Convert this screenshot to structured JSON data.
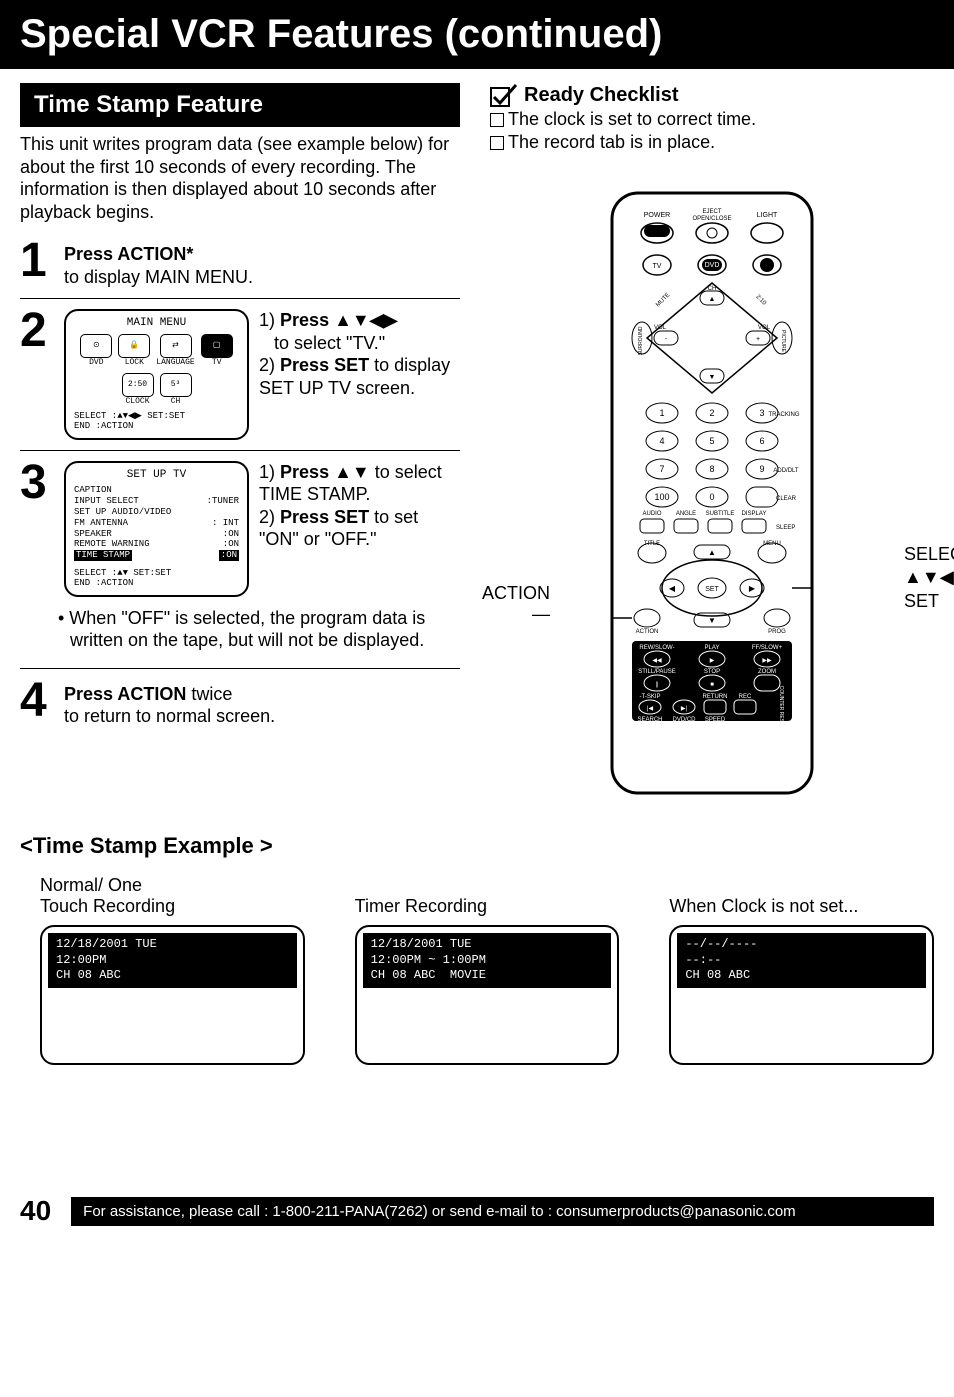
{
  "page": {
    "title": "Special VCR Features (continued)",
    "section_title": "Time Stamp Feature",
    "intro": "This unit writes program data (see example below) for about the first 10 seconds of every recording. The information is then displayed about 10 seconds after playback begins.",
    "page_number": "40",
    "footer": "For assistance, please call : 1-800-211-PANA(7262) or send e-mail to : consumerproducts@panasonic.com"
  },
  "checklist": {
    "title": "Ready Checklist",
    "items": [
      "The clock is set to correct time.",
      "The record tab is in place."
    ]
  },
  "steps": {
    "s1": {
      "num": "1",
      "bold": "Press ACTION*",
      "rest": "to display MAIN MENU."
    },
    "s2": {
      "num": "2",
      "screen_title": "MAIN MENU",
      "icons": [
        "DVD",
        "LOCK",
        "LANGUAGE",
        "TV",
        "CLOCK",
        "CH"
      ],
      "footer1": "SELECT :▲▼◀▶   SET:SET",
      "footer2": "END    :ACTION",
      "line1a": "1)",
      "line1b": "Press ▲▼◀▶",
      "line1c": "to select \"TV.\"",
      "line2a": "2)",
      "line2b": "Press SET",
      "line2c": " to display SET UP TV screen."
    },
    "s3": {
      "num": "3",
      "screen_title": "SET UP TV",
      "rows": [
        [
          "CAPTION",
          ""
        ],
        [
          "INPUT SELECT",
          ":TUNER"
        ],
        [
          "SET UP AUDIO/VIDEO",
          ""
        ],
        [
          "FM ANTENNA",
          ": INT"
        ],
        [
          "SPEAKER",
          ":ON"
        ],
        [
          "REMOTE WARNING",
          ":ON"
        ]
      ],
      "highlight_row": "TIME STAMP",
      "highlight_val": ":ON",
      "footer1": "SELECT :▲▼        SET:SET",
      "footer2": "END    :ACTION",
      "line1a": "1)",
      "line1b": "Press ▲▼",
      "line1c": " to select TIME STAMP.",
      "line2a": "2)",
      "line2b": "Press SET",
      "line2c": " to set \"ON\" or \"OFF.\""
    },
    "note": "• When \"OFF\" is selected, the program data is written on the tape, but will not be displayed.",
    "s4": {
      "num": "4",
      "bold": "Press ACTION",
      "mid": " twice",
      "rest": "to return to normal screen."
    }
  },
  "remote": {
    "label_action": "ACTION",
    "label_select": "SELECT",
    "label_arrows": "▲▼◀▶",
    "label_set": "SET"
  },
  "example": {
    "heading": "<Time Stamp Example >",
    "cols": [
      {
        "label": "Normal/ One\nTouch Recording",
        "text": "12/18/2001 TUE\n12:00PM\nCH 08 ABC"
      },
      {
        "label": "Timer Recording",
        "text": "12/18/2001 TUE\n12:00PM ~ 1:00PM\nCH 08 ABC  MOVIE"
      },
      {
        "label": "When Clock is not set...",
        "text": "--/--/----\n--:--\nCH 08 ABC"
      }
    ]
  }
}
